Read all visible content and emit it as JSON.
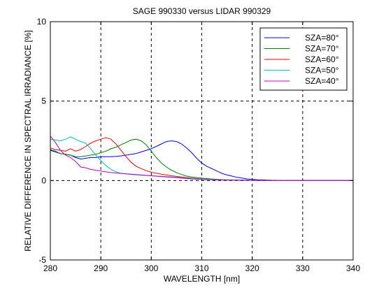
{
  "chart_data": {
    "type": "line",
    "title": "SAGE 990330 versus LIDAR 990329",
    "xlabel": "WAVELENGTH [nm]",
    "ylabel": "RELATIVE DIFFERENCE IN SPECTRAL IRRADIANCE [%]",
    "xlim": [
      280,
      340
    ],
    "ylim": [
      -5,
      10
    ],
    "xticks": [
      280,
      290,
      300,
      310,
      320,
      330,
      340
    ],
    "yticks": [
      -5,
      0,
      5,
      10
    ],
    "grid": true,
    "legend_position": "top-right",
    "series": [
      {
        "name": "SZA=80°",
        "color": "#0000ff",
        "x": [
          280,
          281,
          282,
          283,
          284,
          285,
          286,
          287,
          288,
          289,
          290,
          291,
          292,
          293,
          294,
          295,
          296,
          297,
          298,
          299,
          300,
          301,
          302,
          303,
          304,
          305,
          306,
          307,
          308,
          309,
          310,
          311,
          312,
          313,
          314,
          315,
          316,
          317,
          318,
          319,
          320,
          321,
          322,
          324,
          326,
          328,
          330,
          334,
          340
        ],
        "y": [
          1.9,
          1.8,
          1.7,
          1.65,
          1.6,
          1.45,
          1.35,
          1.4,
          1.45,
          1.45,
          1.5,
          1.5,
          1.5,
          1.52,
          1.55,
          1.6,
          1.65,
          1.7,
          1.8,
          1.9,
          2.0,
          2.15,
          2.3,
          2.45,
          2.5,
          2.45,
          2.3,
          2.05,
          1.75,
          1.4,
          1.1,
          0.9,
          0.75,
          0.6,
          0.45,
          0.35,
          0.28,
          0.2,
          0.15,
          0.1,
          0.08,
          0.05,
          0.04,
          0.02,
          0.01,
          0.0,
          0.0,
          0.0,
          0.0
        ]
      },
      {
        "name": "SZA=70°",
        "color": "#008000",
        "x": [
          280,
          281,
          282,
          283,
          284,
          285,
          286,
          287,
          288,
          289,
          290,
          291,
          292,
          293,
          294,
          295,
          296,
          297,
          298,
          299,
          300,
          301,
          302,
          303,
          304,
          305,
          306,
          307,
          308,
          310,
          312,
          314,
          316,
          320,
          324,
          330,
          340
        ],
        "y": [
          1.95,
          1.85,
          1.7,
          1.65,
          1.6,
          1.5,
          1.5,
          1.55,
          1.6,
          1.65,
          1.75,
          1.85,
          2.0,
          2.1,
          2.25,
          2.4,
          2.55,
          2.6,
          2.5,
          2.25,
          1.85,
          1.45,
          1.1,
          0.85,
          0.65,
          0.5,
          0.38,
          0.28,
          0.22,
          0.15,
          0.1,
          0.06,
          0.04,
          0.02,
          0.01,
          0.0,
          0.0
        ]
      },
      {
        "name": "SZA=60°",
        "color": "#ff0000",
        "x": [
          280,
          281,
          282,
          283,
          284,
          285,
          286,
          287,
          288,
          289,
          290,
          291,
          292,
          293,
          294,
          295,
          296,
          297,
          298,
          299,
          300,
          302,
          304,
          306,
          308,
          310,
          312,
          316,
          320,
          330,
          340
        ],
        "y": [
          2.05,
          1.95,
          1.9,
          1.85,
          2.0,
          1.85,
          1.95,
          2.15,
          2.35,
          2.5,
          2.6,
          2.7,
          2.6,
          2.3,
          1.9,
          1.5,
          1.15,
          0.9,
          0.75,
          0.62,
          0.52,
          0.4,
          0.3,
          0.22,
          0.15,
          0.1,
          0.06,
          0.03,
          0.01,
          0.0,
          0.0
        ]
      },
      {
        "name": "SZA=50°",
        "color": "#00bfbf",
        "x": [
          280,
          281,
          282,
          283,
          284,
          285,
          286,
          287,
          288,
          289,
          290,
          291,
          292,
          293,
          294,
          296,
          298,
          300,
          302,
          304,
          306,
          308,
          310,
          314,
          320,
          330,
          340
        ],
        "y": [
          2.6,
          2.55,
          2.5,
          2.6,
          2.75,
          2.6,
          2.45,
          2.35,
          2.0,
          1.6,
          1.25,
          0.95,
          0.7,
          0.55,
          0.45,
          0.38,
          0.33,
          0.3,
          0.27,
          0.23,
          0.18,
          0.13,
          0.09,
          0.04,
          0.01,
          0.0,
          0.0
        ]
      },
      {
        "name": "SZA=40°",
        "color": "#bf00bf",
        "x": [
          280,
          281,
          282,
          283,
          284,
          285,
          286,
          287,
          288,
          289,
          290,
          292,
          294,
          296,
          298,
          300,
          302,
          304,
          306,
          308,
          310,
          314,
          320,
          330,
          340
        ],
        "y": [
          2.8,
          2.4,
          1.9,
          1.6,
          1.45,
          1.2,
          0.85,
          0.8,
          0.7,
          0.65,
          0.6,
          0.5,
          0.45,
          0.4,
          0.35,
          0.3,
          0.25,
          0.2,
          0.15,
          0.1,
          0.07,
          0.03,
          0.01,
          0.0,
          0.0
        ]
      }
    ]
  }
}
